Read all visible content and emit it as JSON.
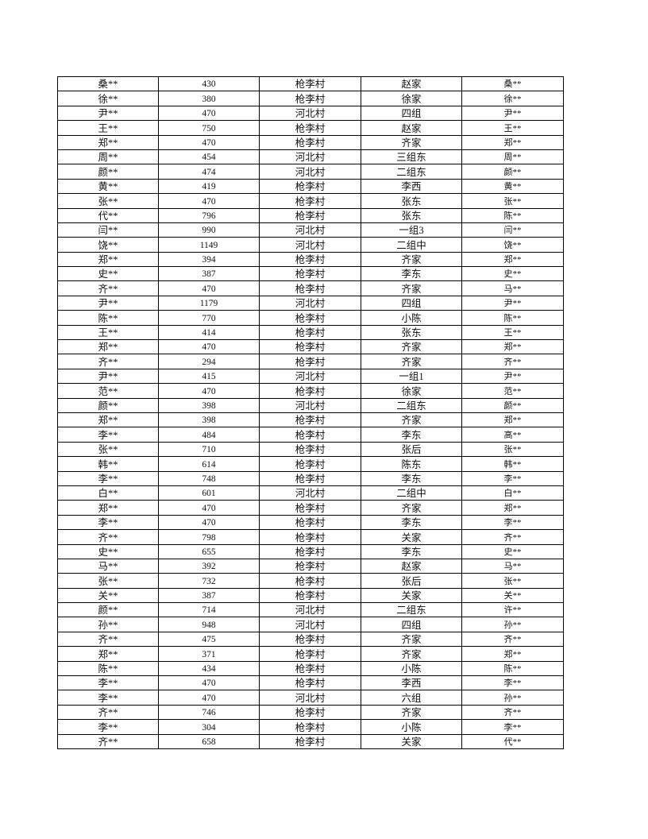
{
  "table": {
    "rows": [
      [
        "桑**",
        "430",
        "枪李村",
        "赵家",
        "桑**"
      ],
      [
        "徐**",
        "380",
        "枪李村",
        "徐家",
        "徐**"
      ],
      [
        "尹**",
        "470",
        "河北村",
        "四组",
        "尹**"
      ],
      [
        "王**",
        "750",
        "枪李村",
        "赵家",
        "王**"
      ],
      [
        "郑**",
        "470",
        "枪李村",
        "齐家",
        "郑**"
      ],
      [
        "周**",
        "454",
        "河北村",
        "三组东",
        "周**"
      ],
      [
        "颜**",
        "474",
        "河北村",
        "二组东",
        "颜**"
      ],
      [
        "黄**",
        "419",
        "枪李村",
        "李西",
        "黄**"
      ],
      [
        "张**",
        "470",
        "枪李村",
        "张东",
        "张**"
      ],
      [
        "代**",
        "796",
        "枪李村",
        "张东",
        "陈**"
      ],
      [
        "闫**",
        "990",
        "河北村",
        "一组3",
        "闫**"
      ],
      [
        "饶**",
        "1149",
        "河北村",
        "二组中",
        "饶**"
      ],
      [
        "郑**",
        "394",
        "枪李村",
        "齐家",
        "郑**"
      ],
      [
        "史**",
        "387",
        "枪李村",
        "李东",
        "史**"
      ],
      [
        "齐**",
        "470",
        "枪李村",
        "齐家",
        "马**"
      ],
      [
        "尹**",
        "1179",
        "河北村",
        "四组",
        "尹**"
      ],
      [
        "陈**",
        "770",
        "枪李村",
        "小陈",
        "陈**"
      ],
      [
        "王**",
        "414",
        "枪李村",
        "张东",
        "王**"
      ],
      [
        "郑**",
        "470",
        "枪李村",
        "齐家",
        "郑**"
      ],
      [
        "齐**",
        "294",
        "枪李村",
        "齐家",
        "齐**"
      ],
      [
        "尹**",
        "415",
        "河北村",
        "一组1",
        "尹**"
      ],
      [
        "范**",
        "470",
        "枪李村",
        "徐家",
        "范**"
      ],
      [
        "颜**",
        "398",
        "河北村",
        "二组东",
        "颜**"
      ],
      [
        "郑**",
        "398",
        "枪李村",
        "齐家",
        "郑**"
      ],
      [
        "李**",
        "484",
        "枪李村",
        "李东",
        "高**"
      ],
      [
        "张**",
        "710",
        "枪李村",
        "张后",
        "张**"
      ],
      [
        "韩**",
        "614",
        "枪李村",
        "陈东",
        "韩**"
      ],
      [
        "李**",
        "748",
        "枪李村",
        "李东",
        "李**"
      ],
      [
        "白**",
        "601",
        "河北村",
        "二组中",
        "白**"
      ],
      [
        "郑**",
        "470",
        "枪李村",
        "齐家",
        "郑**"
      ],
      [
        "李**",
        "470",
        "枪李村",
        "李东",
        "李**"
      ],
      [
        "齐**",
        "798",
        "枪李村",
        "关家",
        "齐**"
      ],
      [
        "史**",
        "655",
        "枪李村",
        "李东",
        "史**"
      ],
      [
        "马**",
        "392",
        "枪李村",
        "赵家",
        "马**"
      ],
      [
        "张**",
        "732",
        "枪李村",
        "张后",
        "张**"
      ],
      [
        "关**",
        "387",
        "枪李村",
        "关家",
        "关**"
      ],
      [
        "颜**",
        "714",
        "河北村",
        "二组东",
        "许**"
      ],
      [
        "孙**",
        "948",
        "河北村",
        "四组",
        "孙**"
      ],
      [
        "齐**",
        "475",
        "枪李村",
        "齐家",
        "齐**"
      ],
      [
        "郑**",
        "371",
        "枪李村",
        "齐家",
        "郑**"
      ],
      [
        "陈**",
        "434",
        "枪李村",
        "小陈",
        "陈**"
      ],
      [
        "李**",
        "470",
        "枪李村",
        "李西",
        "李**"
      ],
      [
        "李**",
        "470",
        "河北村",
        "六组",
        "孙**"
      ],
      [
        "齐**",
        "746",
        "枪李村",
        "齐家",
        "齐**"
      ],
      [
        "李**",
        "304",
        "枪李村",
        "小陈",
        "李**"
      ],
      [
        "齐**",
        "658",
        "枪李村",
        "关家",
        "代**"
      ]
    ]
  }
}
